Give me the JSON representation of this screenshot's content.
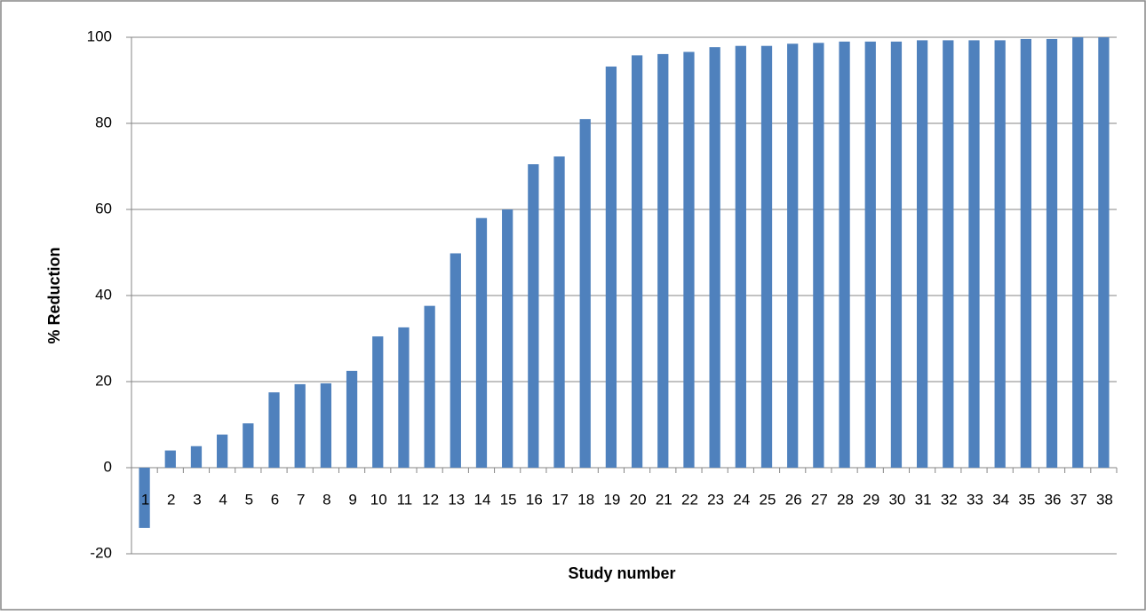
{
  "chart_data": {
    "type": "bar",
    "x_label": "Study number",
    "y_label": "% Reduction",
    "categories": [
      "1",
      "2",
      "3",
      "4",
      "5",
      "6",
      "7",
      "8",
      "9",
      "10",
      "11",
      "12",
      "13",
      "14",
      "15",
      "16",
      "17",
      "18",
      "19",
      "20",
      "21",
      "22",
      "23",
      "24",
      "25",
      "26",
      "27",
      "28",
      "29",
      "30",
      "31",
      "32",
      "33",
      "34",
      "35",
      "36",
      "37",
      "38"
    ],
    "values": [
      -14,
      4,
      5,
      7.7,
      10.3,
      17.5,
      19.4,
      19.6,
      22.5,
      30.5,
      32.6,
      37.6,
      49.8,
      58,
      60,
      70.5,
      72.3,
      81,
      93.2,
      95.8,
      96.1,
      96.6,
      97.7,
      98,
      98,
      98.5,
      98.7,
      99,
      99,
      99,
      99.3,
      99.3,
      99.3,
      99.3,
      99.6,
      99.6,
      100,
      100
    ],
    "color": "#4f81bd",
    "ylim": [
      -20,
      100
    ],
    "yticks": [
      -20,
      0,
      20,
      40,
      60,
      80,
      100
    ],
    "grid": true
  }
}
